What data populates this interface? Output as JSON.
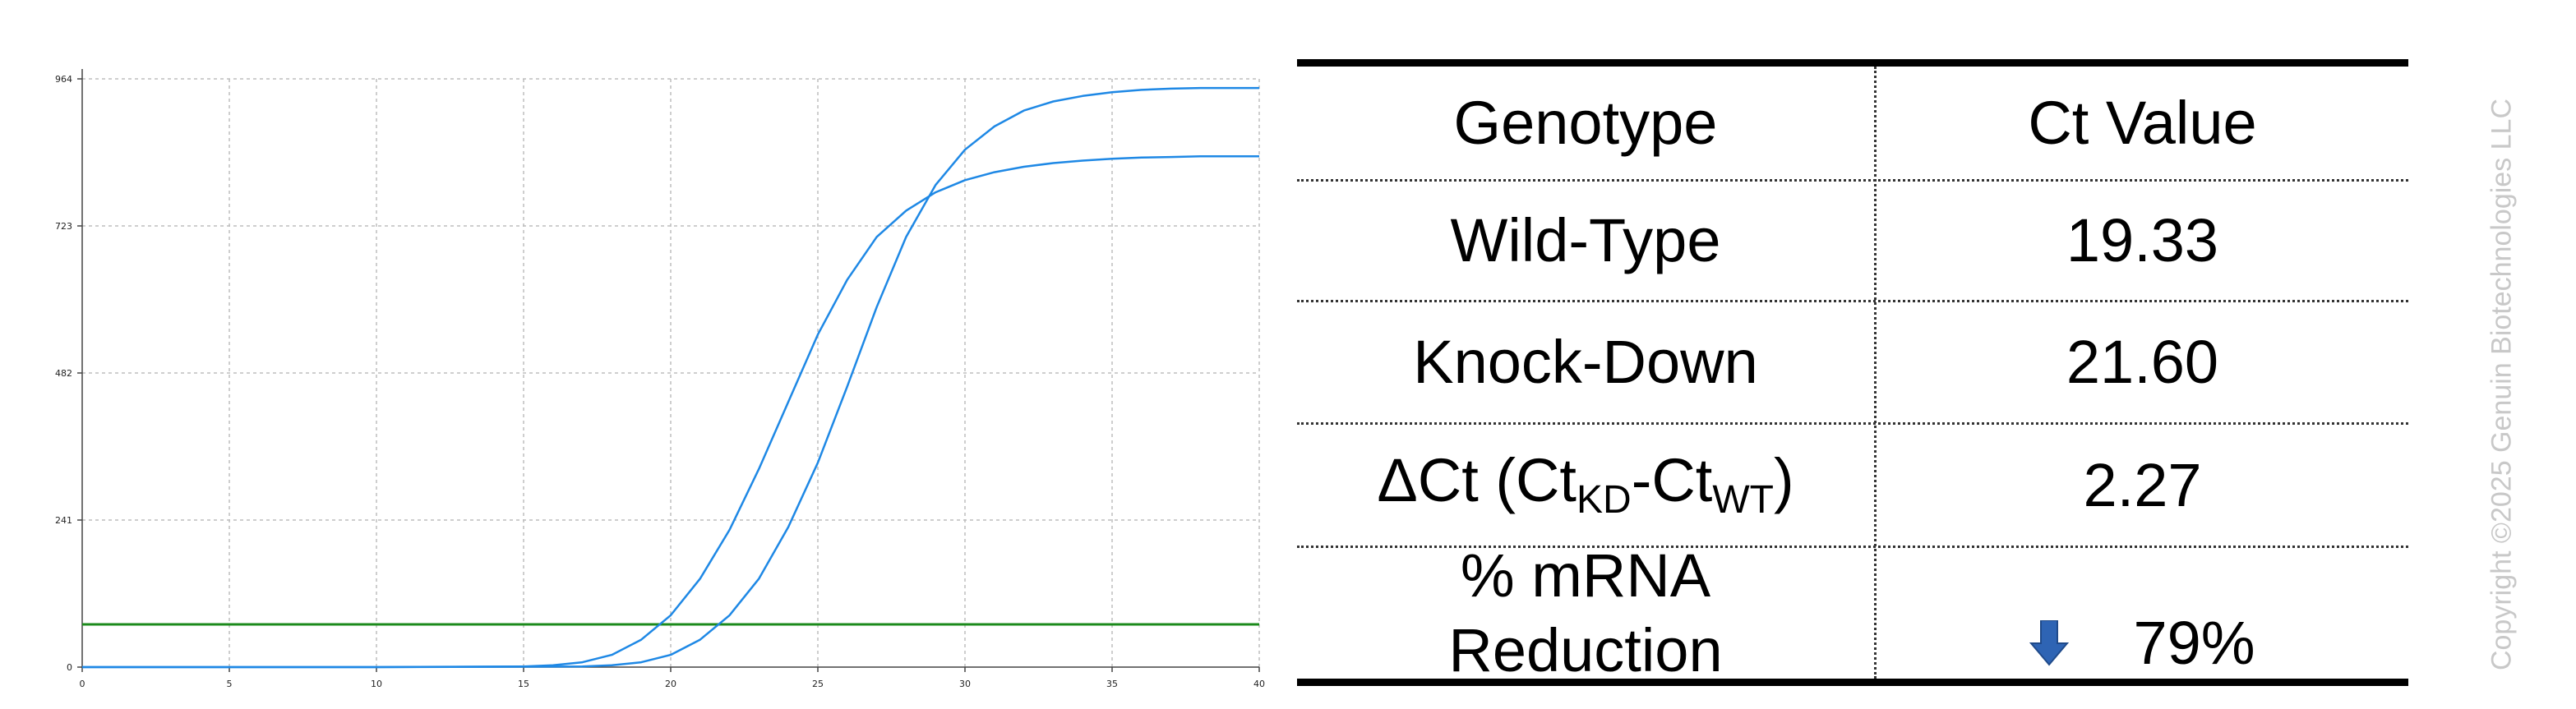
{
  "chart_data": {
    "type": "line",
    "title": "",
    "xlabel": "",
    "ylabel": "",
    "xlim": [
      0,
      40
    ],
    "ylim": [
      0,
      964
    ],
    "x_ticks": [
      0,
      5,
      10,
      15,
      20,
      25,
      30,
      35,
      40
    ],
    "y_ticks": [
      0,
      241,
      482,
      723,
      964
    ],
    "grid": true,
    "threshold": 70,
    "series": [
      {
        "color": "#1e88e5",
        "points": [
          [
            0,
            0
          ],
          [
            10,
            0
          ],
          [
            15,
            1
          ],
          [
            16,
            3
          ],
          [
            17,
            8
          ],
          [
            18,
            20
          ],
          [
            19,
            45
          ],
          [
            20,
            85
          ],
          [
            21,
            145
          ],
          [
            22,
            225
          ],
          [
            23,
            325
          ],
          [
            24,
            435
          ],
          [
            25,
            545
          ],
          [
            26,
            635
          ],
          [
            27,
            705
          ],
          [
            28,
            748
          ],
          [
            29,
            778
          ],
          [
            30,
            798
          ],
          [
            31,
            811
          ],
          [
            32,
            820
          ],
          [
            33,
            826
          ],
          [
            34,
            830
          ],
          [
            35,
            833
          ],
          [
            36,
            835
          ],
          [
            37,
            836
          ],
          [
            38,
            837
          ],
          [
            39,
            837
          ],
          [
            40,
            837
          ]
        ]
      },
      {
        "color": "#1e88e5",
        "points": [
          [
            0,
            0
          ],
          [
            10,
            0
          ],
          [
            17,
            1
          ],
          [
            18,
            3
          ],
          [
            19,
            8
          ],
          [
            20,
            20
          ],
          [
            21,
            45
          ],
          [
            22,
            85
          ],
          [
            23,
            145
          ],
          [
            24,
            230
          ],
          [
            25,
            335
          ],
          [
            26,
            460
          ],
          [
            27,
            590
          ],
          [
            28,
            705
          ],
          [
            29,
            790
          ],
          [
            30,
            848
          ],
          [
            31,
            886
          ],
          [
            32,
            912
          ],
          [
            33,
            927
          ],
          [
            34,
            936
          ],
          [
            35,
            942
          ],
          [
            36,
            946
          ],
          [
            37,
            948
          ],
          [
            38,
            949
          ],
          [
            39,
            949
          ],
          [
            40,
            949
          ]
        ]
      }
    ],
    "threshold_color": "#1b8a1b"
  },
  "table": {
    "header": {
      "genotype": "Genotype",
      "ct": "Ct Value"
    },
    "wild_type": {
      "label": "Wild-Type",
      "value": "19.33"
    },
    "knock_down": {
      "label": "Knock-Down",
      "value": "21.60"
    },
    "delta_ct": {
      "prefix": "ΔCt (Ct",
      "sub1": "KD",
      "mid": "-Ct",
      "sub2": "WT",
      "suffix": ")",
      "value": "2.27"
    },
    "reduction": {
      "line1": "% mRNA",
      "line2": "Reduction",
      "value": "79%",
      "arrow_icon": "down-arrow-icon",
      "arrow_color": "#2e64b4"
    }
  },
  "watermark": "Copyright ©2025 Genuin Biotechnologies LLC"
}
